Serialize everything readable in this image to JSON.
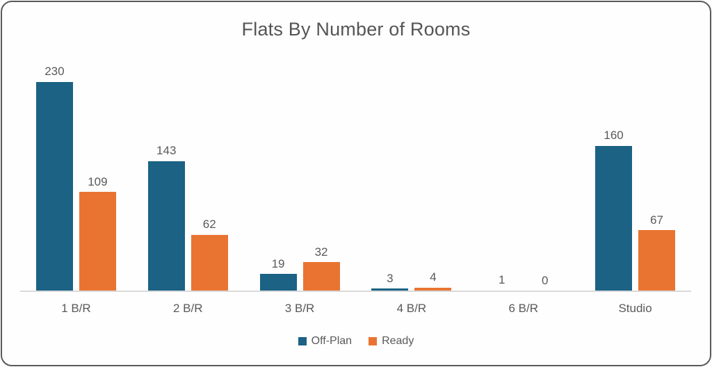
{
  "frame": {
    "border_color": "#595959",
    "background": "#fefefe"
  },
  "chart_data": {
    "type": "bar",
    "title": "Flats By Number of Rooms",
    "categories": [
      "1 B/R",
      "2 B/R",
      "3 B/R",
      "4 B/R",
      "6 B/R",
      "Studio"
    ],
    "series": [
      {
        "name": "Off-Plan",
        "color": "#1B6284",
        "values": [
          230,
          143,
          19,
          3,
          1,
          160
        ]
      },
      {
        "name": "Ready",
        "color": "#E97432",
        "values": [
          109,
          62,
          32,
          4,
          0,
          67
        ]
      }
    ],
    "data_labels": true,
    "label_color": "#595959",
    "axis_line_color": "#d9d9d9",
    "grid": false,
    "y_axis_visible": false,
    "legend_position": "bottom",
    "xlabel": "",
    "ylabel": ""
  }
}
